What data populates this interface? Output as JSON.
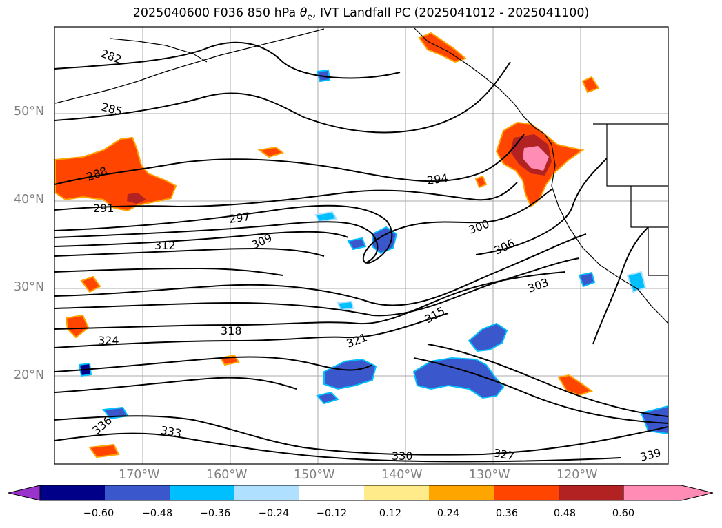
{
  "title_text": "2025040600 F036 850 hPa θe, IVT Landfall PC (2025041012 - 2025041100)",
  "title_prefix": "2025040600 F036 850 hPa ",
  "title_symbol": "θ",
  "title_subscript": "e",
  "title_suffix": ", IVT Landfall PC (2025041012 - 2025041100)",
  "lat_labels": [
    "50°N",
    "40°N",
    "30°N",
    "20°N"
  ],
  "lon_labels": [
    "170°W",
    "160°W",
    "150°W",
    "140°W",
    "130°W",
    "120°W"
  ],
  "contour_labels": [
    "282",
    "285",
    "288",
    "291",
    "294",
    "297",
    "300",
    "303",
    "306",
    "309",
    "312",
    "315",
    "318",
    "321",
    "324",
    "327",
    "330",
    "333",
    "336",
    "339"
  ],
  "colorbar": {
    "labels": [
      "−0.60",
      "−0.48",
      "−0.36",
      "−0.24",
      "−0.12",
      "0.12",
      "0.24",
      "0.36",
      "0.48",
      "0.60"
    ],
    "bins": [
      "#9933cc",
      "#000088",
      "#3a58cc",
      "#00bfff",
      "#b0e0ff",
      "#ffffff",
      "#ffeb8a",
      "#ffa500",
      "#ff4500",
      "#b22222",
      "#ff8cb4"
    ]
  },
  "colors": {
    "grid": "#aaaaaa",
    "contour": "#000000",
    "tick_text": "#808080"
  }
}
